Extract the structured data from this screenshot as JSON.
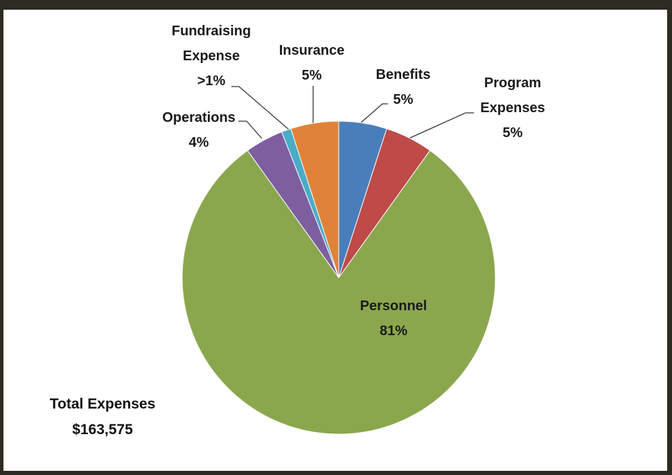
{
  "chart_data": {
    "type": "pie",
    "categories": [
      "Benefits",
      "Program Expenses",
      "Personnel",
      "Operations",
      "Fundraising Expense",
      "Insurance"
    ],
    "values": [
      5,
      5,
      81,
      4,
      1,
      5
    ],
    "value_labels": [
      "5%",
      "5%",
      "81%",
      "4%",
      ">1%",
      "5%"
    ],
    "colors": [
      "#4a7ebb",
      "#be4b48",
      "#8ba74e",
      "#7d5fa0",
      "#4bacc6",
      "#e0833a"
    ],
    "annotation": [
      "Total Expenses",
      "$163,575"
    ]
  }
}
